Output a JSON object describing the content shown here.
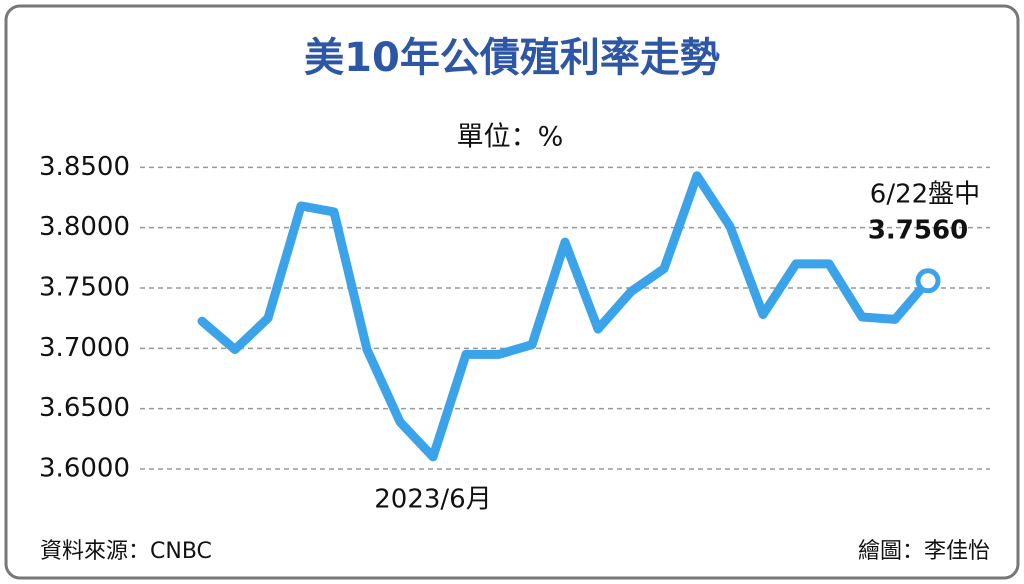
{
  "chart_data": {
    "type": "line",
    "title": "美10年公債殖利率走勢",
    "unit_label": "單位：%",
    "categories": [
      null,
      null,
      null,
      null,
      null,
      null,
      null,
      "2023/6月",
      null,
      null,
      null,
      null,
      null,
      null,
      null,
      null,
      null,
      null,
      null,
      null,
      null,
      null,
      null
    ],
    "values": [
      3.7225,
      3.699,
      3.725,
      3.818,
      3.813,
      3.699,
      3.639,
      3.61,
      3.695,
      3.695,
      3.703,
      3.788,
      3.716,
      3.747,
      3.766,
      3.843,
      3.801,
      3.728,
      3.77,
      3.77,
      3.726,
      3.724,
      3.756
    ],
    "value_labels": [
      null,
      null,
      null,
      null,
      null,
      null,
      null,
      null,
      null,
      null,
      null,
      null,
      null,
      null,
      null,
      null,
      null,
      null,
      null,
      null,
      null,
      null,
      "3.7560"
    ],
    "end_annotation": "6/22盤中",
    "color": "#3ba3ea",
    "ylim": [
      3.6,
      3.9
    ],
    "yticks": [
      {
        "value": 3.6,
        "label": "3.6000"
      },
      {
        "value": 3.65,
        "label": "3.6500"
      },
      {
        "value": 3.7,
        "label": "3.7000"
      },
      {
        "value": 3.75,
        "label": "3.7500"
      },
      {
        "value": 3.8,
        "label": "3.8000"
      },
      {
        "value": 3.85,
        "label": "3.8500"
      }
    ],
    "grid": true,
    "source": "資料來源：CNBC",
    "credit": "繪圖：李佳怡"
  }
}
